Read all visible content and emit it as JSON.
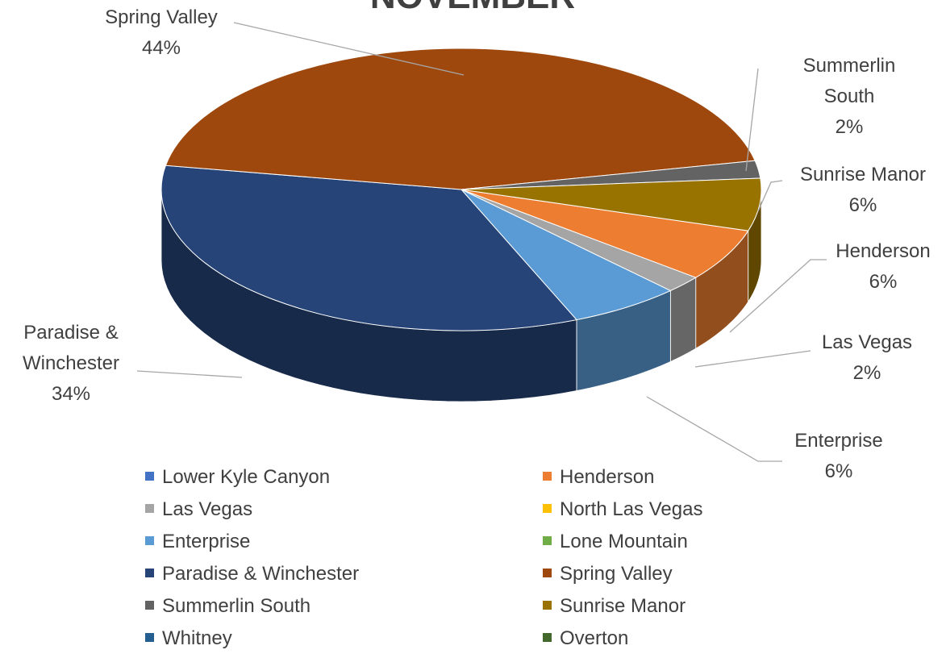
{
  "chart_data": {
    "type": "pie",
    "title": "NOVEMBER",
    "categories": [
      "Lower Kyle Canyon",
      "Henderson",
      "Las Vegas",
      "North Las Vegas",
      "Enterprise",
      "Lone Mountain",
      "Paradise & Winchester",
      "Spring Valley",
      "Summerlin South",
      "Sunrise Manor",
      "Whitney",
      "Overton"
    ],
    "values": [
      0,
      6,
      2,
      0,
      6,
      0,
      34,
      44,
      2,
      6,
      0,
      0
    ],
    "value_labels": [
      null,
      "6%",
      "2%",
      null,
      "6%",
      null,
      "34%",
      "44%",
      "2%",
      "6%",
      null,
      null
    ],
    "colors": [
      "#4472c4",
      "#ed7d31",
      "#a5a5a5",
      "#ffc000",
      "#5b9bd5",
      "#70ad47",
      "#264478",
      "#9e480e",
      "#636363",
      "#997300",
      "#255e91",
      "#43682b"
    ],
    "legend": "bottom"
  }
}
